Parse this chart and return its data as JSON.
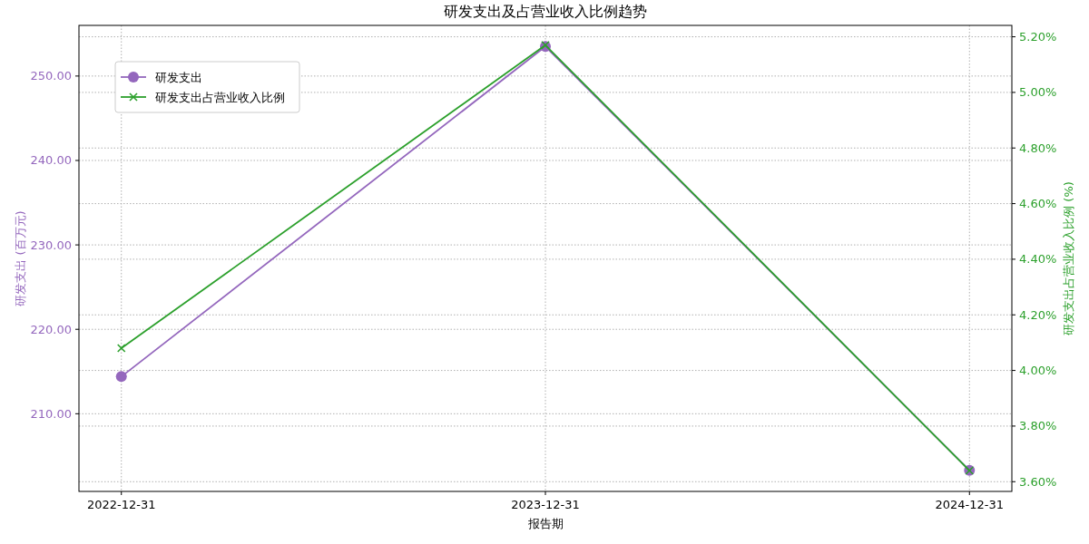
{
  "chart_data": {
    "type": "line",
    "title": "研发支出及占营业收入比例趋势",
    "xlabel": "报告期",
    "ylabel": "研发支出 (百万元)",
    "y2label": "研发支出占营业收入比例 (%)",
    "categories": [
      "2022-12-31",
      "2023-12-31",
      "2024-12-31"
    ],
    "series": [
      {
        "name": "研发支出",
        "color": "#9467bd",
        "marker": "circle",
        "values": [
          214.4,
          253.5,
          203.3
        ]
      },
      {
        "name": "研发支出占营业收入比例",
        "color": "#2ca02c",
        "marker": "cross",
        "axis": "y2",
        "values": [
          4.08,
          5.17,
          3.64
        ]
      }
    ],
    "ylim": [
      200.8,
      256.0
    ],
    "yticks": [
      {
        "value": 210,
        "label": "210.00"
      },
      {
        "value": 220,
        "label": "220.00"
      },
      {
        "value": 230,
        "label": "230.00"
      },
      {
        "value": 240,
        "label": "240.00"
      },
      {
        "value": 250,
        "label": "250.00"
      }
    ],
    "y2lim": [
      3.565,
      5.241
    ],
    "y2ticks": [
      {
        "value": 3.6,
        "label": "3.60%"
      },
      {
        "value": 3.8,
        "label": "3.80%"
      },
      {
        "value": 4.0,
        "label": "4.00%"
      },
      {
        "value": 4.2,
        "label": "4.20%"
      },
      {
        "value": 4.4,
        "label": "4.40%"
      },
      {
        "value": 4.6,
        "label": "4.60%"
      },
      {
        "value": 4.8,
        "label": "4.80%"
      },
      {
        "value": 5.0,
        "label": "5.00%"
      },
      {
        "value": 5.2,
        "label": "5.20%"
      }
    ],
    "grid": true,
    "legend": "top left",
    "line_style": "solid"
  }
}
